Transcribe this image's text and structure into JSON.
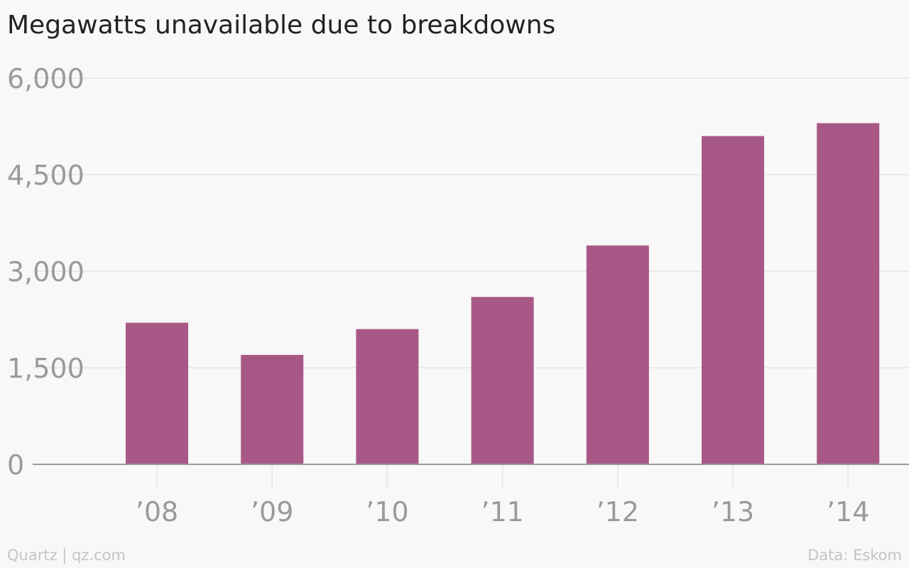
{
  "chart_data": {
    "type": "bar",
    "title": "Megawatts unavailable due to breakdowns",
    "categories": [
      "’08",
      "’09",
      "’10",
      "’11",
      "’12",
      "’13",
      "’14"
    ],
    "values": [
      2200,
      1700,
      2100,
      2600,
      3400,
      5100,
      5300
    ],
    "yticks": [
      "0",
      "1,500",
      "3,000",
      "4,500",
      "6,000"
    ],
    "ylim": [
      0,
      6000
    ],
    "grid": true,
    "legend": "none",
    "bar_color": "#a85886"
  },
  "footer": {
    "credit": "Quartz | qz.com",
    "source": "Data: Eskom"
  }
}
